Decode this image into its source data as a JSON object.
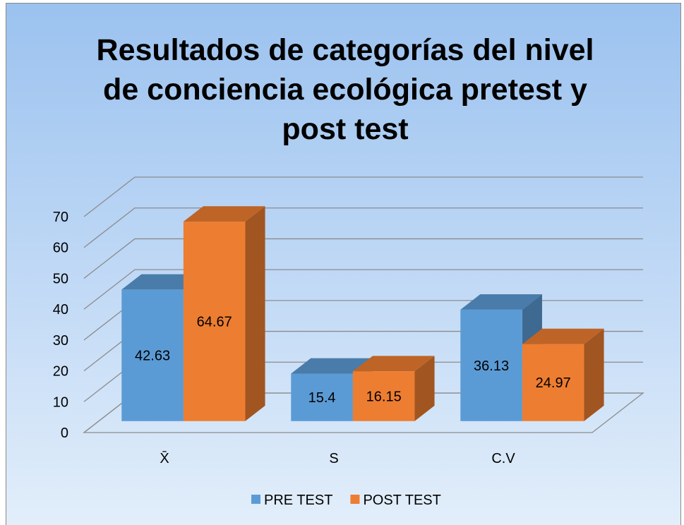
{
  "chart_data": {
    "type": "bar3d",
    "title": "Resultados de categorías del nivel de conciencia ecológica pretest y post test",
    "categories": [
      "X̄",
      "S",
      "C.V"
    ],
    "series": [
      {
        "name": "PRE TEST",
        "color": "#5b9bd5",
        "values": [
          42.63,
          15.4,
          36.13
        ]
      },
      {
        "name": "POST TEST",
        "color": "#ed7d31",
        "values": [
          64.67,
          16.15,
          24.97
        ]
      }
    ],
    "ylim": [
      0,
      70
    ],
    "yticks": [
      0,
      10,
      20,
      30,
      40,
      50,
      60,
      70
    ],
    "grid": true,
    "legend": "bottom"
  }
}
